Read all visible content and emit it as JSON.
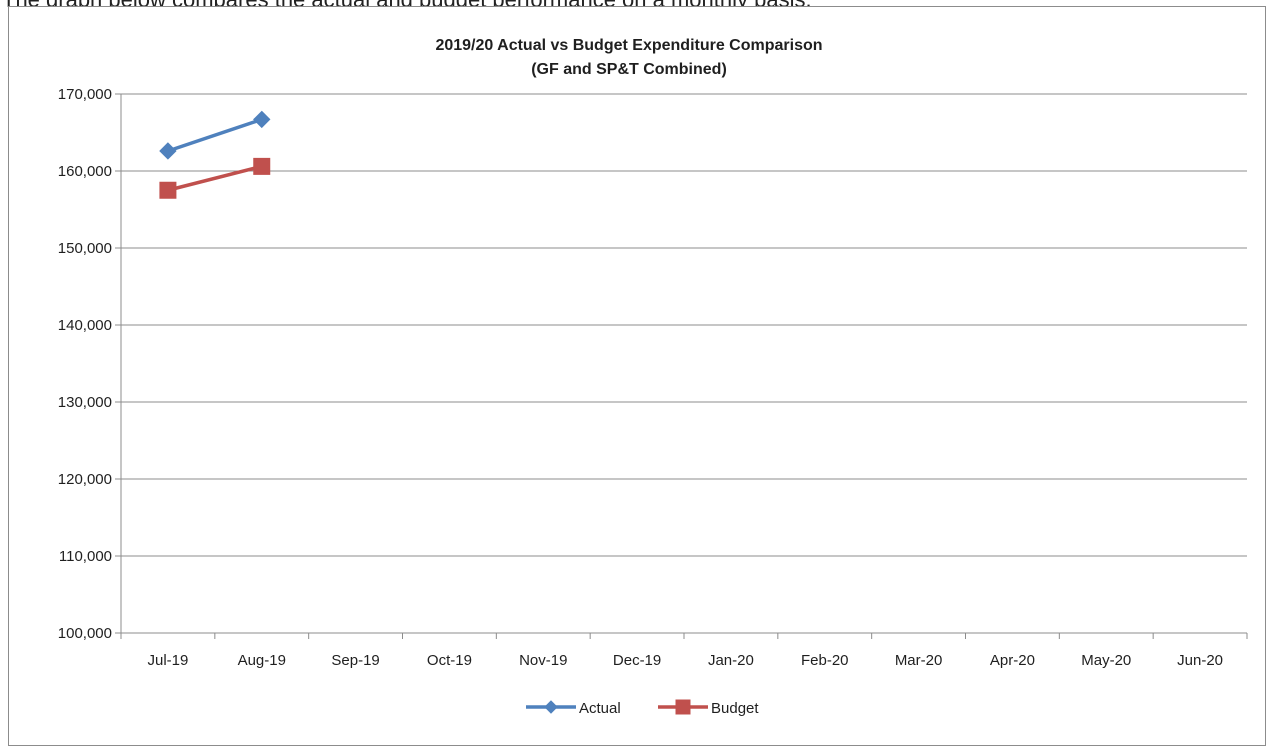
{
  "page": {
    "top_caption": "The graph below compares the actual and budget performance on a monthly basis."
  },
  "chart_data": {
    "type": "line",
    "title": "2019/20 Actual vs Budget Expenditure Comparison",
    "subtitle": "(GF and SP&T Combined)",
    "xlabel": "",
    "ylabel": "",
    "categories": [
      "Jul-19",
      "Aug-19",
      "Sep-19",
      "Oct-19",
      "Nov-19",
      "Dec-19",
      "Jan-20",
      "Feb-20",
      "Mar-20",
      "Apr-20",
      "May-20",
      "Jun-20"
    ],
    "ylim": [
      100000,
      170000
    ],
    "yticks": [
      100000,
      110000,
      120000,
      130000,
      140000,
      150000,
      160000,
      170000
    ],
    "ytick_labels": [
      "100,000",
      "110,000",
      "120,000",
      "130,000",
      "140,000",
      "150,000",
      "160,000",
      "170,000"
    ],
    "grid": true,
    "legend_position": "bottom",
    "series": [
      {
        "name": "Actual",
        "color": "#4f81bd",
        "marker": "diamond",
        "values": [
          162600,
          166700,
          null,
          null,
          null,
          null,
          null,
          null,
          null,
          null,
          null,
          null
        ]
      },
      {
        "name": "Budget",
        "color": "#c0504d",
        "marker": "square",
        "values": [
          157500,
          160600,
          null,
          null,
          null,
          null,
          null,
          null,
          null,
          null,
          null,
          null
        ]
      }
    ]
  }
}
